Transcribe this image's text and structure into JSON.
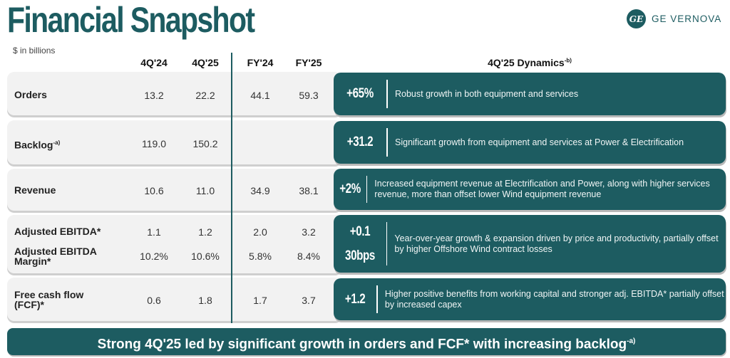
{
  "header": {
    "title": "Financial Snapshot",
    "logo_text": "GE VERNOVA",
    "logo_monogram": "GE",
    "units": "$ in billions"
  },
  "columns": [
    "4Q'24",
    "4Q'25",
    "FY'24",
    "FY'25"
  ],
  "dynamics_header": {
    "label": "4Q'25 Dynamics",
    "footnote": "-b)"
  },
  "rows": [
    {
      "label": "Orders",
      "values": [
        "13.2",
        "22.2",
        "44.1",
        "59.3"
      ],
      "delta": "+65%",
      "commentary": "Robust growth in both equipment and services"
    },
    {
      "label": "Backlog",
      "footnote": "-a)",
      "values": [
        "119.0",
        "150.2",
        "",
        ""
      ],
      "delta": "+31.2",
      "commentary": "Significant growth from equipment and services at Power & Electrification"
    },
    {
      "label": "Revenue",
      "values": [
        "10.6",
        "11.0",
        "34.9",
        "38.1"
      ],
      "delta": "+2%",
      "commentary": "Increased equipment revenue at Electrification and Power, along with higher services revenue, more than offset lower Wind equipment revenue"
    },
    {
      "label": "Adjusted EBITDA*",
      "values": [
        "1.1",
        "1.2",
        "2.0",
        "3.2"
      ],
      "delta": "+0.1",
      "sub_label": "Adjusted EBITDA Margin*",
      "sub_values": [
        "10.2%",
        "10.6%",
        "5.8%",
        "8.4%"
      ],
      "sub_delta": "30bps",
      "commentary": "Year-over-year growth & expansion driven by price and productivity, partially offset by higher Offshore Wind contract losses"
    },
    {
      "label": "Free cash flow (FCF)*",
      "values": [
        "0.6",
        "1.8",
        "1.7",
        "3.7"
      ],
      "delta": "+1.2",
      "commentary": "Higher positive benefits from working capital and stronger adj. EBITDA* partially offset by increased capex"
    }
  ],
  "banner": {
    "text": "Strong 4Q'25 led by significant growth in orders and FCF* with increasing backlog",
    "footnote": "-a)"
  },
  "colors": {
    "brand": "#1d5c61",
    "row_bg": "#f2f2f2"
  }
}
